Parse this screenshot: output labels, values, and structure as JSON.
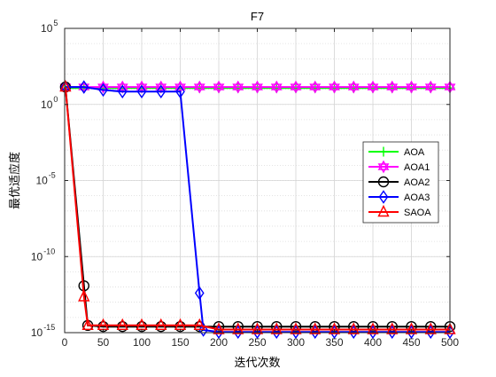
{
  "chart_data": {
    "type": "line",
    "title": "F7",
    "xlabel": "迭代次数",
    "ylabel": "最优适应度",
    "xlim": [
      0,
      500
    ],
    "ylim": [
      1e-15,
      100000
    ],
    "yscale": "log",
    "grid": true,
    "x_ticks": [
      0,
      50,
      100,
      150,
      200,
      250,
      300,
      350,
      400,
      450,
      500
    ],
    "y_ticks": [
      {
        "value": 1,
        "base": "10",
        "exp": "0"
      },
      {
        "value": 1e-05,
        "base": "10",
        "exp": "-5"
      },
      {
        "value": 1e-10,
        "base": "10",
        "exp": "-10"
      },
      {
        "value": 1e-15,
        "base": "10",
        "exp": "-15"
      },
      {
        "value": 100000,
        "base": "10",
        "exp": "5"
      }
    ],
    "legend_position": "right",
    "series": [
      {
        "name": "AOA",
        "color": "#00ff00",
        "marker": "plus",
        "x": [
          1,
          25,
          50,
          75,
          100,
          125,
          150,
          175,
          200,
          225,
          250,
          275,
          300,
          325,
          350,
          375,
          400,
          425,
          450,
          475,
          500
        ],
        "y": [
          12,
          12,
          12,
          12,
          12,
          12,
          12,
          12,
          12,
          12,
          12,
          12,
          12,
          12,
          12,
          12,
          12,
          12,
          12,
          12,
          12
        ]
      },
      {
        "name": "AOA1",
        "color": "#ff00ff",
        "marker": "hexagram",
        "x": [
          1,
          25,
          50,
          75,
          100,
          125,
          150,
          175,
          200,
          225,
          250,
          275,
          300,
          325,
          350,
          375,
          400,
          425,
          450,
          475,
          500
        ],
        "y": [
          14,
          14,
          14,
          14,
          14,
          14,
          14,
          14,
          14,
          14,
          14,
          14,
          14,
          14,
          14,
          14,
          14,
          14,
          14,
          14,
          14
        ]
      },
      {
        "name": "AOA2",
        "color": "#000000",
        "marker": "circle",
        "x": [
          1,
          25,
          30,
          50,
          75,
          100,
          125,
          150,
          175,
          200,
          225,
          250,
          275,
          300,
          325,
          350,
          375,
          400,
          425,
          450,
          475,
          500
        ],
        "y": [
          14,
          1.2e-12,
          3e-15,
          2.5e-15,
          2.5e-15,
          2.5e-15,
          2.5e-15,
          2.5e-15,
          2.5e-15,
          2.5e-15,
          2.5e-15,
          2.5e-15,
          2.5e-15,
          2.5e-15,
          2.5e-15,
          2.5e-15,
          2.5e-15,
          2.5e-15,
          2.5e-15,
          2.5e-15,
          2.5e-15,
          2.5e-15
        ]
      },
      {
        "name": "AOA3",
        "color": "#0000ff",
        "marker": "diamond",
        "x": [
          1,
          25,
          50,
          75,
          100,
          125,
          150,
          175,
          180,
          200,
          225,
          250,
          275,
          300,
          325,
          350,
          375,
          400,
          425,
          450,
          475,
          500
        ],
        "y": [
          14,
          14,
          9,
          7,
          7,
          7,
          7,
          4e-13,
          1.5e-15,
          1.1e-15,
          1.1e-15,
          1.1e-15,
          1.1e-15,
          1.1e-15,
          1.1e-15,
          1.1e-15,
          1.1e-15,
          1.1e-15,
          1.1e-15,
          1.1e-15,
          1.1e-15,
          1.1e-15
        ]
      },
      {
        "name": "SAOA",
        "color": "#ff0000",
        "marker": "triangle",
        "x": [
          1,
          25,
          30,
          50,
          75,
          100,
          125,
          150,
          175,
          200,
          225,
          250,
          275,
          300,
          325,
          350,
          375,
          400,
          425,
          450,
          475,
          500
        ],
        "y": [
          14,
          2.3e-13,
          3e-15,
          3e-15,
          3e-15,
          3e-15,
          3e-15,
          3e-15,
          3e-15,
          1.6e-15,
          1.6e-15,
          1.6e-15,
          1.6e-15,
          1.6e-15,
          1.6e-15,
          1.6e-15,
          1.6e-15,
          1.6e-15,
          1.6e-15,
          1.6e-15,
          1.6e-15,
          1.6e-15
        ]
      }
    ]
  }
}
